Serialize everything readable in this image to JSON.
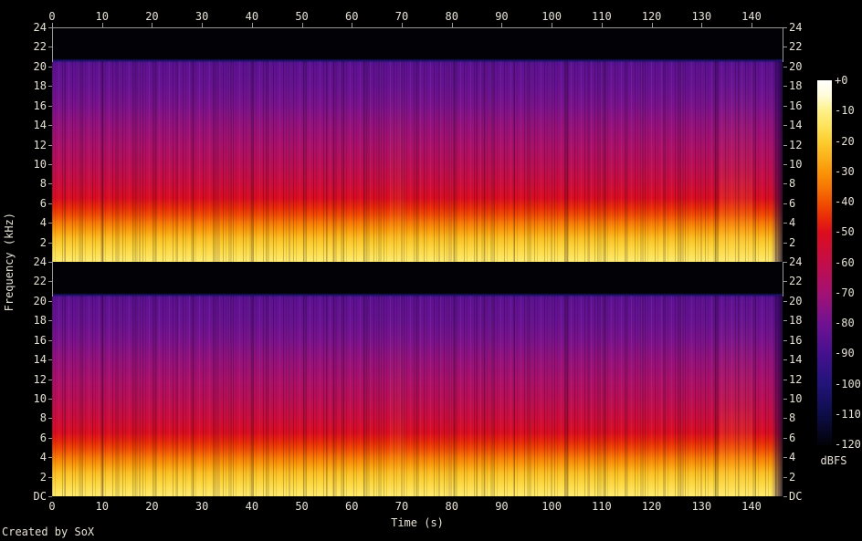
{
  "credit": "Created by SoX",
  "axes": {
    "x_label": "Time (s)",
    "y_label": "Frequency (kHz)",
    "colorbar_label": "dBFS"
  },
  "chart_data": {
    "type": "heatmap",
    "subtype": "audio-spectrogram",
    "tool": "SoX",
    "title": "",
    "panels": [
      "channel-1-top",
      "channel-2-bottom"
    ],
    "x": {
      "label": "Time (s)",
      "min": 0,
      "max": 146,
      "tick_interval": 10,
      "ticks": [
        0,
        10,
        20,
        30,
        40,
        50,
        60,
        70,
        80,
        90,
        100,
        110,
        120,
        130,
        140
      ]
    },
    "y": {
      "label": "Frequency (kHz)",
      "max_khz": 24,
      "min_label": "DC",
      "tick_interval_khz": 2,
      "tick_labels_per_panel": [
        "24",
        "22",
        "20",
        "18",
        "16",
        "14",
        "12",
        "10",
        "8",
        "6",
        "4",
        "2"
      ],
      "bottom_label": "DC"
    },
    "colorbar": {
      "label": "dBFS",
      "top_db": 0,
      "bottom_db": -120,
      "ticks": [
        "+0",
        "-10",
        "-20",
        "-30",
        "-40",
        "-50",
        "-60",
        "-70",
        "-80",
        "-90",
        "-100",
        "-110",
        "-120"
      ]
    },
    "palette": [
      {
        "db": 0,
        "color": "#ffffff"
      },
      {
        "db": -5,
        "color": "#fffcd9"
      },
      {
        "db": -10,
        "color": "#fef189"
      },
      {
        "db": -15,
        "color": "#fee35b"
      },
      {
        "db": -20,
        "color": "#fcce2f"
      },
      {
        "db": -25,
        "color": "#fbb31b"
      },
      {
        "db": -30,
        "color": "#fa9608"
      },
      {
        "db": -35,
        "color": "#f77704"
      },
      {
        "db": -40,
        "color": "#f25102"
      },
      {
        "db": -45,
        "color": "#e92c07"
      },
      {
        "db": -50,
        "color": "#dc0d1d"
      },
      {
        "db": -55,
        "color": "#d00d33"
      },
      {
        "db": -60,
        "color": "#c30d49"
      },
      {
        "db": -70,
        "color": "#a31173"
      },
      {
        "db": -80,
        "color": "#701292"
      },
      {
        "db": -90,
        "color": "#45108f"
      },
      {
        "db": -100,
        "color": "#211478"
      },
      {
        "db": -110,
        "color": "#0d0d48"
      },
      {
        "db": -120,
        "color": "#020206"
      }
    ],
    "spectral_profile_avg": [
      {
        "khz": 24.0,
        "db": -126
      },
      {
        "khz": 20.8,
        "db": -126
      },
      {
        "khz": 20.6,
        "db": -103
      },
      {
        "khz": 20.4,
        "db": -86
      },
      {
        "khz": 20.0,
        "db": -84
      },
      {
        "khz": 18.0,
        "db": -82
      },
      {
        "khz": 16.0,
        "db": -78
      },
      {
        "khz": 14.0,
        "db": -73
      },
      {
        "khz": 12.0,
        "db": -68
      },
      {
        "khz": 10.0,
        "db": -63
      },
      {
        "khz": 8.0,
        "db": -57
      },
      {
        "khz": 6.5,
        "db": -51
      },
      {
        "khz": 5.5,
        "db": -45
      },
      {
        "khz": 4.8,
        "db": -41
      },
      {
        "khz": 4.0,
        "db": -35
      },
      {
        "khz": 3.2,
        "db": -29
      },
      {
        "khz": 2.4,
        "db": -23
      },
      {
        "khz": 1.6,
        "db": -19
      },
      {
        "khz": 0.8,
        "db": -16
      },
      {
        "khz": 0.3,
        "db": -14
      },
      {
        "khz": 0.0,
        "db": -13
      }
    ],
    "features": {
      "lowpass_cutoff_khz": 20.5,
      "duration_s": 146,
      "louder_band_khz": [
        0,
        2
      ],
      "brighter_region_s": [
        134,
        140
      ],
      "fadeout_after_s": 144,
      "channels_similar": true
    }
  }
}
